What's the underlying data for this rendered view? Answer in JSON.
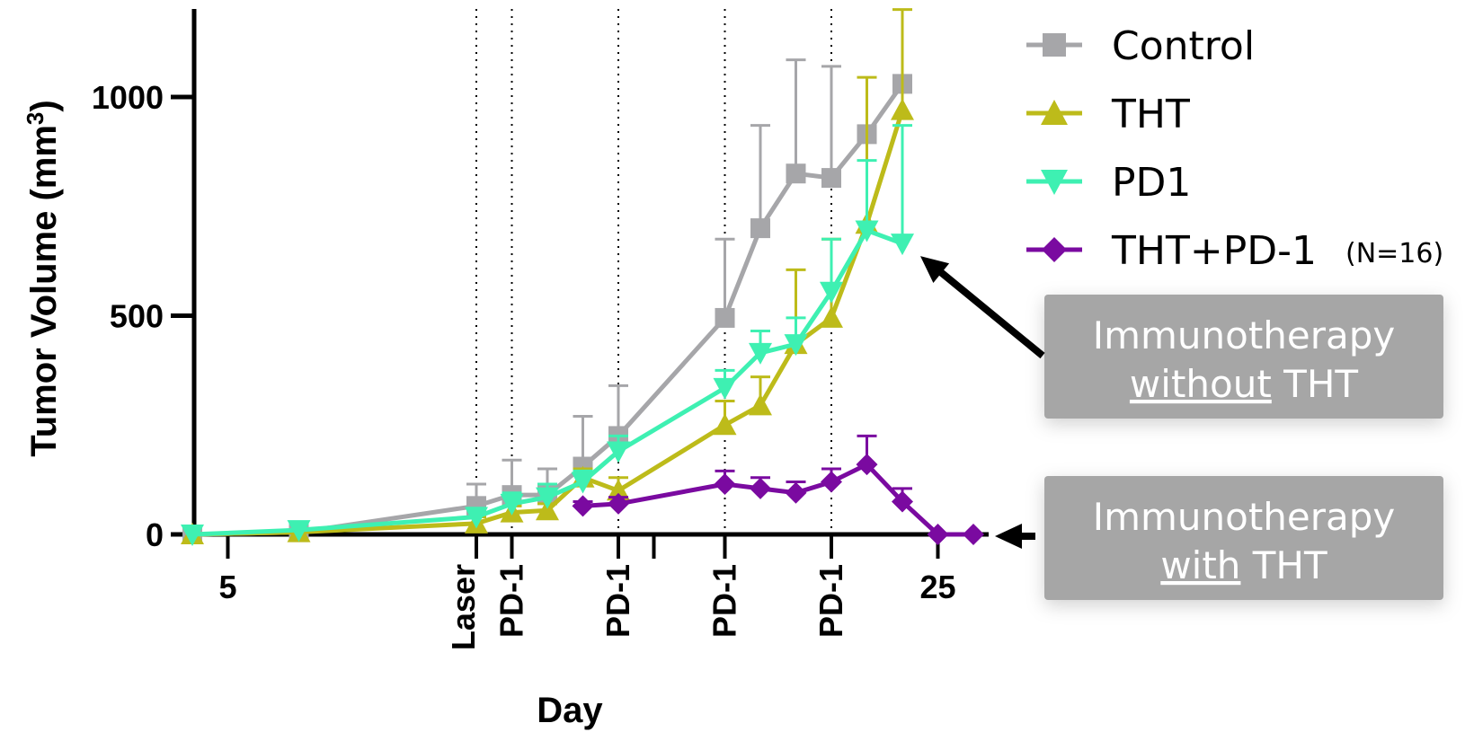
{
  "chart_data": {
    "type": "line",
    "xlabel": "Day",
    "ylabel": "Tumor Volume (mm",
    "ylabel_superscript": "3",
    "ylabel_close": ")",
    "xlim": [
      3,
      27
    ],
    "ylim": [
      0,
      1200
    ],
    "x_ticks": [
      5,
      25
    ],
    "y_ticks": [
      0,
      500,
      1000
    ],
    "x_tick_labels": [
      "5",
      "25"
    ],
    "y_tick_labels": [
      "0",
      "500",
      "1000"
    ],
    "event_lines": [
      {
        "x": 12,
        "label": "Laser"
      },
      {
        "x": 13,
        "label": "PD-1"
      },
      {
        "x": 16,
        "label": "PD-1"
      },
      {
        "x": 19,
        "label": "PD-1"
      },
      {
        "x": 22,
        "label": "PD-1"
      }
    ],
    "legend_position": "top-right",
    "legend_note": "(N=16)",
    "series": [
      {
        "name": "Control",
        "color": "#a6a6a9",
        "marker": "square",
        "points": [
          {
            "x": 4,
            "y": 0,
            "err": 0
          },
          {
            "x": 7,
            "y": 5,
            "err": 5
          },
          {
            "x": 12,
            "y": 65,
            "err": 50
          },
          {
            "x": 13,
            "y": 90,
            "err": 80
          },
          {
            "x": 14,
            "y": 90,
            "err": 60
          },
          {
            "x": 15,
            "y": 155,
            "err": 115
          },
          {
            "x": 16,
            "y": 225,
            "err": 115
          },
          {
            "x": 19,
            "y": 495,
            "err": 180
          },
          {
            "x": 20,
            "y": 700,
            "err": 235
          },
          {
            "x": 21,
            "y": 825,
            "err": 260
          },
          {
            "x": 22,
            "y": 815,
            "err": 255
          },
          {
            "x": 23,
            "y": 915,
            "err": 0
          },
          {
            "x": 24,
            "y": 1030,
            "err": 0
          }
        ]
      },
      {
        "name": "THT",
        "color": "#bdbb1a",
        "marker": "triangle-up",
        "points": [
          {
            "x": 4,
            "y": 0,
            "err": 0
          },
          {
            "x": 7,
            "y": 5,
            "err": 5
          },
          {
            "x": 12,
            "y": 25,
            "err": 15
          },
          {
            "x": 13,
            "y": 50,
            "err": 15
          },
          {
            "x": 14,
            "y": 55,
            "err": 15
          },
          {
            "x": 15,
            "y": 130,
            "err": 20
          },
          {
            "x": 16,
            "y": 100,
            "err": 30
          },
          {
            "x": 19,
            "y": 250,
            "err": 55
          },
          {
            "x": 20,
            "y": 295,
            "err": 65
          },
          {
            "x": 21,
            "y": 435,
            "err": 170
          },
          {
            "x": 22,
            "y": 495,
            "err": 180
          },
          {
            "x": 23,
            "y": 710,
            "err": 335
          },
          {
            "x": 24,
            "y": 970,
            "err": 230
          }
        ]
      },
      {
        "name": "PD1",
        "color": "#3ef0b2",
        "marker": "triangle-down",
        "points": [
          {
            "x": 4,
            "y": 0,
            "err": 0
          },
          {
            "x": 7,
            "y": 10,
            "err": 15
          },
          {
            "x": 12,
            "y": 40,
            "err": 20
          },
          {
            "x": 13,
            "y": 70,
            "err": 25
          },
          {
            "x": 14,
            "y": 85,
            "err": 30
          },
          {
            "x": 15,
            "y": 120,
            "err": 25
          },
          {
            "x": 16,
            "y": 190,
            "err": 35
          },
          {
            "x": 19,
            "y": 335,
            "err": 40
          },
          {
            "x": 20,
            "y": 415,
            "err": 50
          },
          {
            "x": 21,
            "y": 435,
            "err": 60
          },
          {
            "x": 22,
            "y": 555,
            "err": 120
          },
          {
            "x": 23,
            "y": 695,
            "err": 160
          },
          {
            "x": 24,
            "y": 665,
            "err": 270
          }
        ]
      },
      {
        "name": "THT+PD-1",
        "color": "#7a0aa0",
        "marker": "diamond",
        "points": [
          {
            "x": 15,
            "y": 65,
            "err": 10
          },
          {
            "x": 16,
            "y": 70,
            "err": 15
          },
          {
            "x": 19,
            "y": 115,
            "err": 30
          },
          {
            "x": 20,
            "y": 105,
            "err": 25
          },
          {
            "x": 21,
            "y": 95,
            "err": 25
          },
          {
            "x": 22,
            "y": 120,
            "err": 30
          },
          {
            "x": 23,
            "y": 160,
            "err": 65
          },
          {
            "x": 24,
            "y": 75,
            "err": 30
          },
          {
            "x": 25,
            "y": 0,
            "err": 0
          },
          {
            "x": 26,
            "y": 0,
            "err": 0
          }
        ]
      }
    ],
    "callouts": [
      {
        "line1": "Immunotherapy",
        "underlined": "without",
        "rest": " THT",
        "target_series": "PD1",
        "target_x": 24
      },
      {
        "line1": "Immunotherapy",
        "underlined": "with",
        "rest": " THT",
        "target_series": "THT+PD-1",
        "target_x": 26
      }
    ]
  }
}
